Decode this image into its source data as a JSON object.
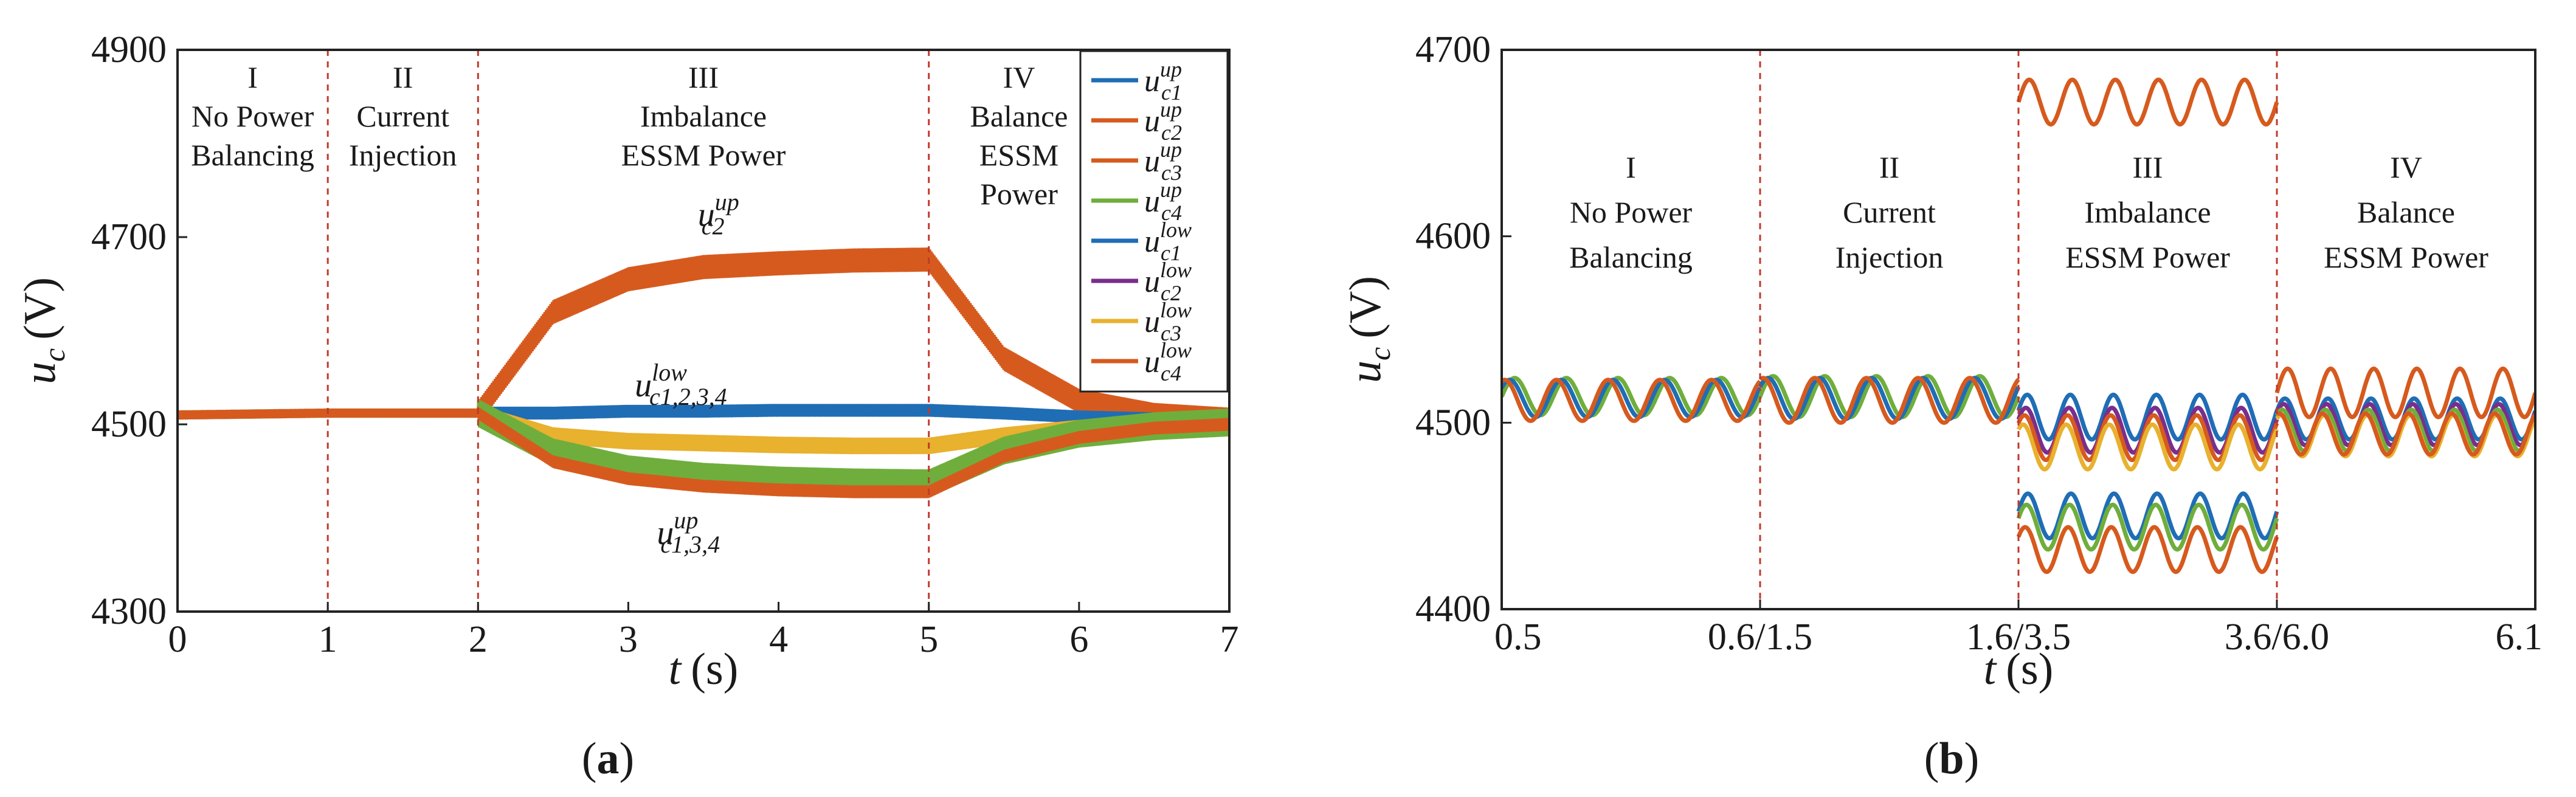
{
  "colors": {
    "blue": "#1f6db5",
    "orange": "#d65a1e",
    "green": "#6fae3c",
    "purple": "#7a2e8c",
    "yellow": "#e8b12e",
    "red_dashed": "#c0392b",
    "axis": "#222222"
  },
  "chart_data": [
    {
      "id": "a",
      "type": "line",
      "panel_label_parts": [
        "(",
        "a",
        ")"
      ],
      "xlabel": "t",
      "xunit": "(s)",
      "ylabel": "u",
      "ylabel_sub": "c",
      "yunit": "(V)",
      "xlim": [
        0,
        7
      ],
      "ylim": [
        4300,
        4900
      ],
      "xticks": [
        "0",
        "1",
        "2",
        "3",
        "4",
        "5",
        "6",
        "7"
      ],
      "yticks": [
        "4300",
        "4500",
        "4700",
        "4900"
      ],
      "phase_boundaries": [
        1,
        2,
        5
      ],
      "phases": [
        {
          "x": 0.5,
          "lines": [
            "I",
            "No Power",
            "Balancing"
          ]
        },
        {
          "x": 1.5,
          "lines": [
            "II",
            "Current",
            "Injection"
          ]
        },
        {
          "x": 3.5,
          "lines": [
            "III",
            "Imbalance",
            "ESSM Power"
          ]
        },
        {
          "x": 5.6,
          "lines": [
            "IV",
            "Balance",
            "ESSM",
            "Power"
          ]
        }
      ],
      "annotations": [
        {
          "text": "u",
          "sub": "c2",
          "sup": "up",
          "x": 3.6,
          "y": 4712
        },
        {
          "text": "u",
          "sub": "c1,2,3,4",
          "sup": "low",
          "x": 3.35,
          "y": 4530
        },
        {
          "text": "u",
          "sub": "c1,3,4",
          "sup": "up",
          "x": 3.4,
          "y": 4372
        }
      ],
      "legend": {
        "placement": "top-right",
        "entries": [
          {
            "sub": "c1",
            "sup": "up",
            "color": "#1f6db5"
          },
          {
            "sub": "c2",
            "sup": "up",
            "color": "#d65a1e"
          },
          {
            "sub": "c3",
            "sup": "up",
            "color": "#d65a1e"
          },
          {
            "sub": "c4",
            "sup": "up",
            "color": "#6fae3c"
          },
          {
            "sub": "c1",
            "sup": "low",
            "color": "#1f6db5"
          },
          {
            "sub": "c2",
            "sup": "low",
            "color": "#7a2e8c"
          },
          {
            "sub": "c3",
            "sup": "low",
            "color": "#e8b12e"
          },
          {
            "sub": "c4",
            "sup": "low",
            "color": "#d65a1e"
          }
        ]
      },
      "series": [
        {
          "name": "upper arm c2 (high)",
          "color": "#d65a1e",
          "x": [
            0,
            1,
            2,
            2.5,
            3,
            3.5,
            4,
            4.5,
            5,
            5.5,
            6,
            6.5,
            7
          ],
          "y": [
            4510,
            4512,
            4512,
            4620,
            4655,
            4668,
            4672,
            4675,
            4676,
            4570,
            4525,
            4510,
            4505
          ],
          "ripple": 12
        },
        {
          "name": "lower arm c1-4 (band)",
          "color": "#1f6db5",
          "x": [
            0,
            1,
            2,
            2.5,
            3,
            3.5,
            4,
            4.5,
            5,
            5.5,
            6,
            6.5,
            7
          ],
          "y": [
            4510,
            4512,
            4512,
            4512,
            4514,
            4514,
            4515,
            4515,
            4515,
            4512,
            4508,
            4506,
            4505
          ],
          "ripple": 6
        },
        {
          "name": "lower arm c3 (band)",
          "color": "#e8b12e",
          "x": [
            0,
            1,
            2,
            2.5,
            3,
            3.5,
            4,
            4.5,
            5,
            5.5,
            6,
            6.5,
            7
          ],
          "y": [
            4510,
            4512,
            4512,
            4488,
            4482,
            4480,
            4478,
            4477,
            4477,
            4488,
            4496,
            4500,
            4502
          ],
          "ripple": 8
        },
        {
          "name": "upper arm c1,3,4 (low)",
          "color": "#6fae3c",
          "x": [
            0,
            1,
            2,
            2.5,
            3,
            3.5,
            4,
            4.5,
            5,
            5.5,
            6,
            6.5,
            7
          ],
          "y": [
            4510,
            4512,
            4512,
            4470,
            4452,
            4444,
            4440,
            4438,
            4437,
            4472,
            4490,
            4498,
            4502
          ],
          "ripple": 14
        },
        {
          "name": "upper arm c1,3,4 (low edge)",
          "color": "#d65a1e",
          "x": [
            0,
            1,
            2,
            2.5,
            3,
            3.5,
            4,
            4.5,
            5,
            5.5,
            6,
            6.5,
            7
          ],
          "y": [
            4510,
            4512,
            4512,
            4460,
            4442,
            4434,
            4430,
            4428,
            4428,
            4466,
            4486,
            4496,
            4500
          ],
          "ripple": 6
        }
      ]
    },
    {
      "id": "b",
      "type": "line",
      "panel_label_parts": [
        "(",
        "b",
        ")"
      ],
      "xlabel": "t",
      "xunit": "(s)",
      "ylabel": "u",
      "ylabel_sub": "c",
      "yunit": "(V)",
      "xlim": [
        0,
        4
      ],
      "ylim": [
        4400,
        4700
      ],
      "xticks": [
        "0.5",
        "0.6/1.5",
        "1.6/3.5",
        "3.6/6.0",
        "6.1"
      ],
      "yticks": [
        "4400",
        "4500",
        "4600",
        "4700"
      ],
      "phase_boundaries": [
        1,
        2,
        3
      ],
      "phases": [
        {
          "x": 0.5,
          "lines": [
            "I",
            "No Power",
            "Balancing"
          ]
        },
        {
          "x": 1.5,
          "lines": [
            "II",
            "Current",
            "Injection"
          ]
        },
        {
          "x": 2.5,
          "lines": [
            "III",
            "Imbalance",
            "ESSM Power"
          ]
        },
        {
          "x": 3.5,
          "lines": [
            "IV",
            "Balance",
            "ESSM Power"
          ]
        }
      ],
      "segments": [
        {
          "x0": 0,
          "x1": 1,
          "cycles": 5,
          "waves": [
            {
              "color": "#6fae3c",
              "mid": 4514,
              "amp": 10,
              "phase": 0.0
            },
            {
              "color": "#1f6db5",
              "mid": 4513,
              "amp": 10,
              "phase": 0.6
            },
            {
              "color": "#d65a1e",
              "mid": 4512,
              "amp": 11,
              "phase": 1.2
            }
          ]
        },
        {
          "x0": 1,
          "x1": 2,
          "cycles": 5,
          "waves": [
            {
              "color": "#6fae3c",
              "mid": 4514,
              "amp": 11,
              "phase": 0.0
            },
            {
              "color": "#1f6db5",
              "mid": 4513,
              "amp": 11,
              "phase": 0.6
            },
            {
              "color": "#d65a1e",
              "mid": 4512,
              "amp": 12,
              "phase": 1.2
            }
          ]
        },
        {
          "x0": 2,
          "x1": 3,
          "cycles": 6,
          "waves": [
            {
              "color": "#d65a1e",
              "mid": 4672,
              "amp": 12,
              "phase": 0.0
            },
            {
              "color": "#1f6db5",
              "mid": 4503,
              "amp": 12,
              "phase": 0.3
            },
            {
              "color": "#7a2e8c",
              "mid": 4496,
              "amp": 12,
              "phase": 0.5
            },
            {
              "color": "#d65a1e",
              "mid": 4492,
              "amp": 12,
              "phase": 0.7
            },
            {
              "color": "#e8b12e",
              "mid": 4487,
              "amp": 12,
              "phase": 0.9
            },
            {
              "color": "#1f6db5",
              "mid": 4450,
              "amp": 12,
              "phase": 0.2
            },
            {
              "color": "#6fae3c",
              "mid": 4444,
              "amp": 12,
              "phase": 0.4
            },
            {
              "color": "#d65a1e",
              "mid": 4432,
              "amp": 12,
              "phase": 0.6
            }
          ]
        },
        {
          "x0": 3,
          "x1": 4,
          "cycles": 6,
          "waves": [
            {
              "color": "#d65a1e",
              "mid": 4516,
              "amp": 13,
              "phase": 0.0
            },
            {
              "color": "#1f6db5",
              "mid": 4502,
              "amp": 11,
              "phase": 0.4
            },
            {
              "color": "#7a2e8c",
              "mid": 4499,
              "amp": 11,
              "phase": 0.6
            },
            {
              "color": "#6fae3c",
              "mid": 4496,
              "amp": 11,
              "phase": 0.8
            },
            {
              "color": "#e8b12e",
              "mid": 4493,
              "amp": 11,
              "phase": 1.0
            },
            {
              "color": "#d65a1e",
              "mid": 4494,
              "amp": 11,
              "phase": 1.2
            }
          ]
        }
      ]
    }
  ]
}
